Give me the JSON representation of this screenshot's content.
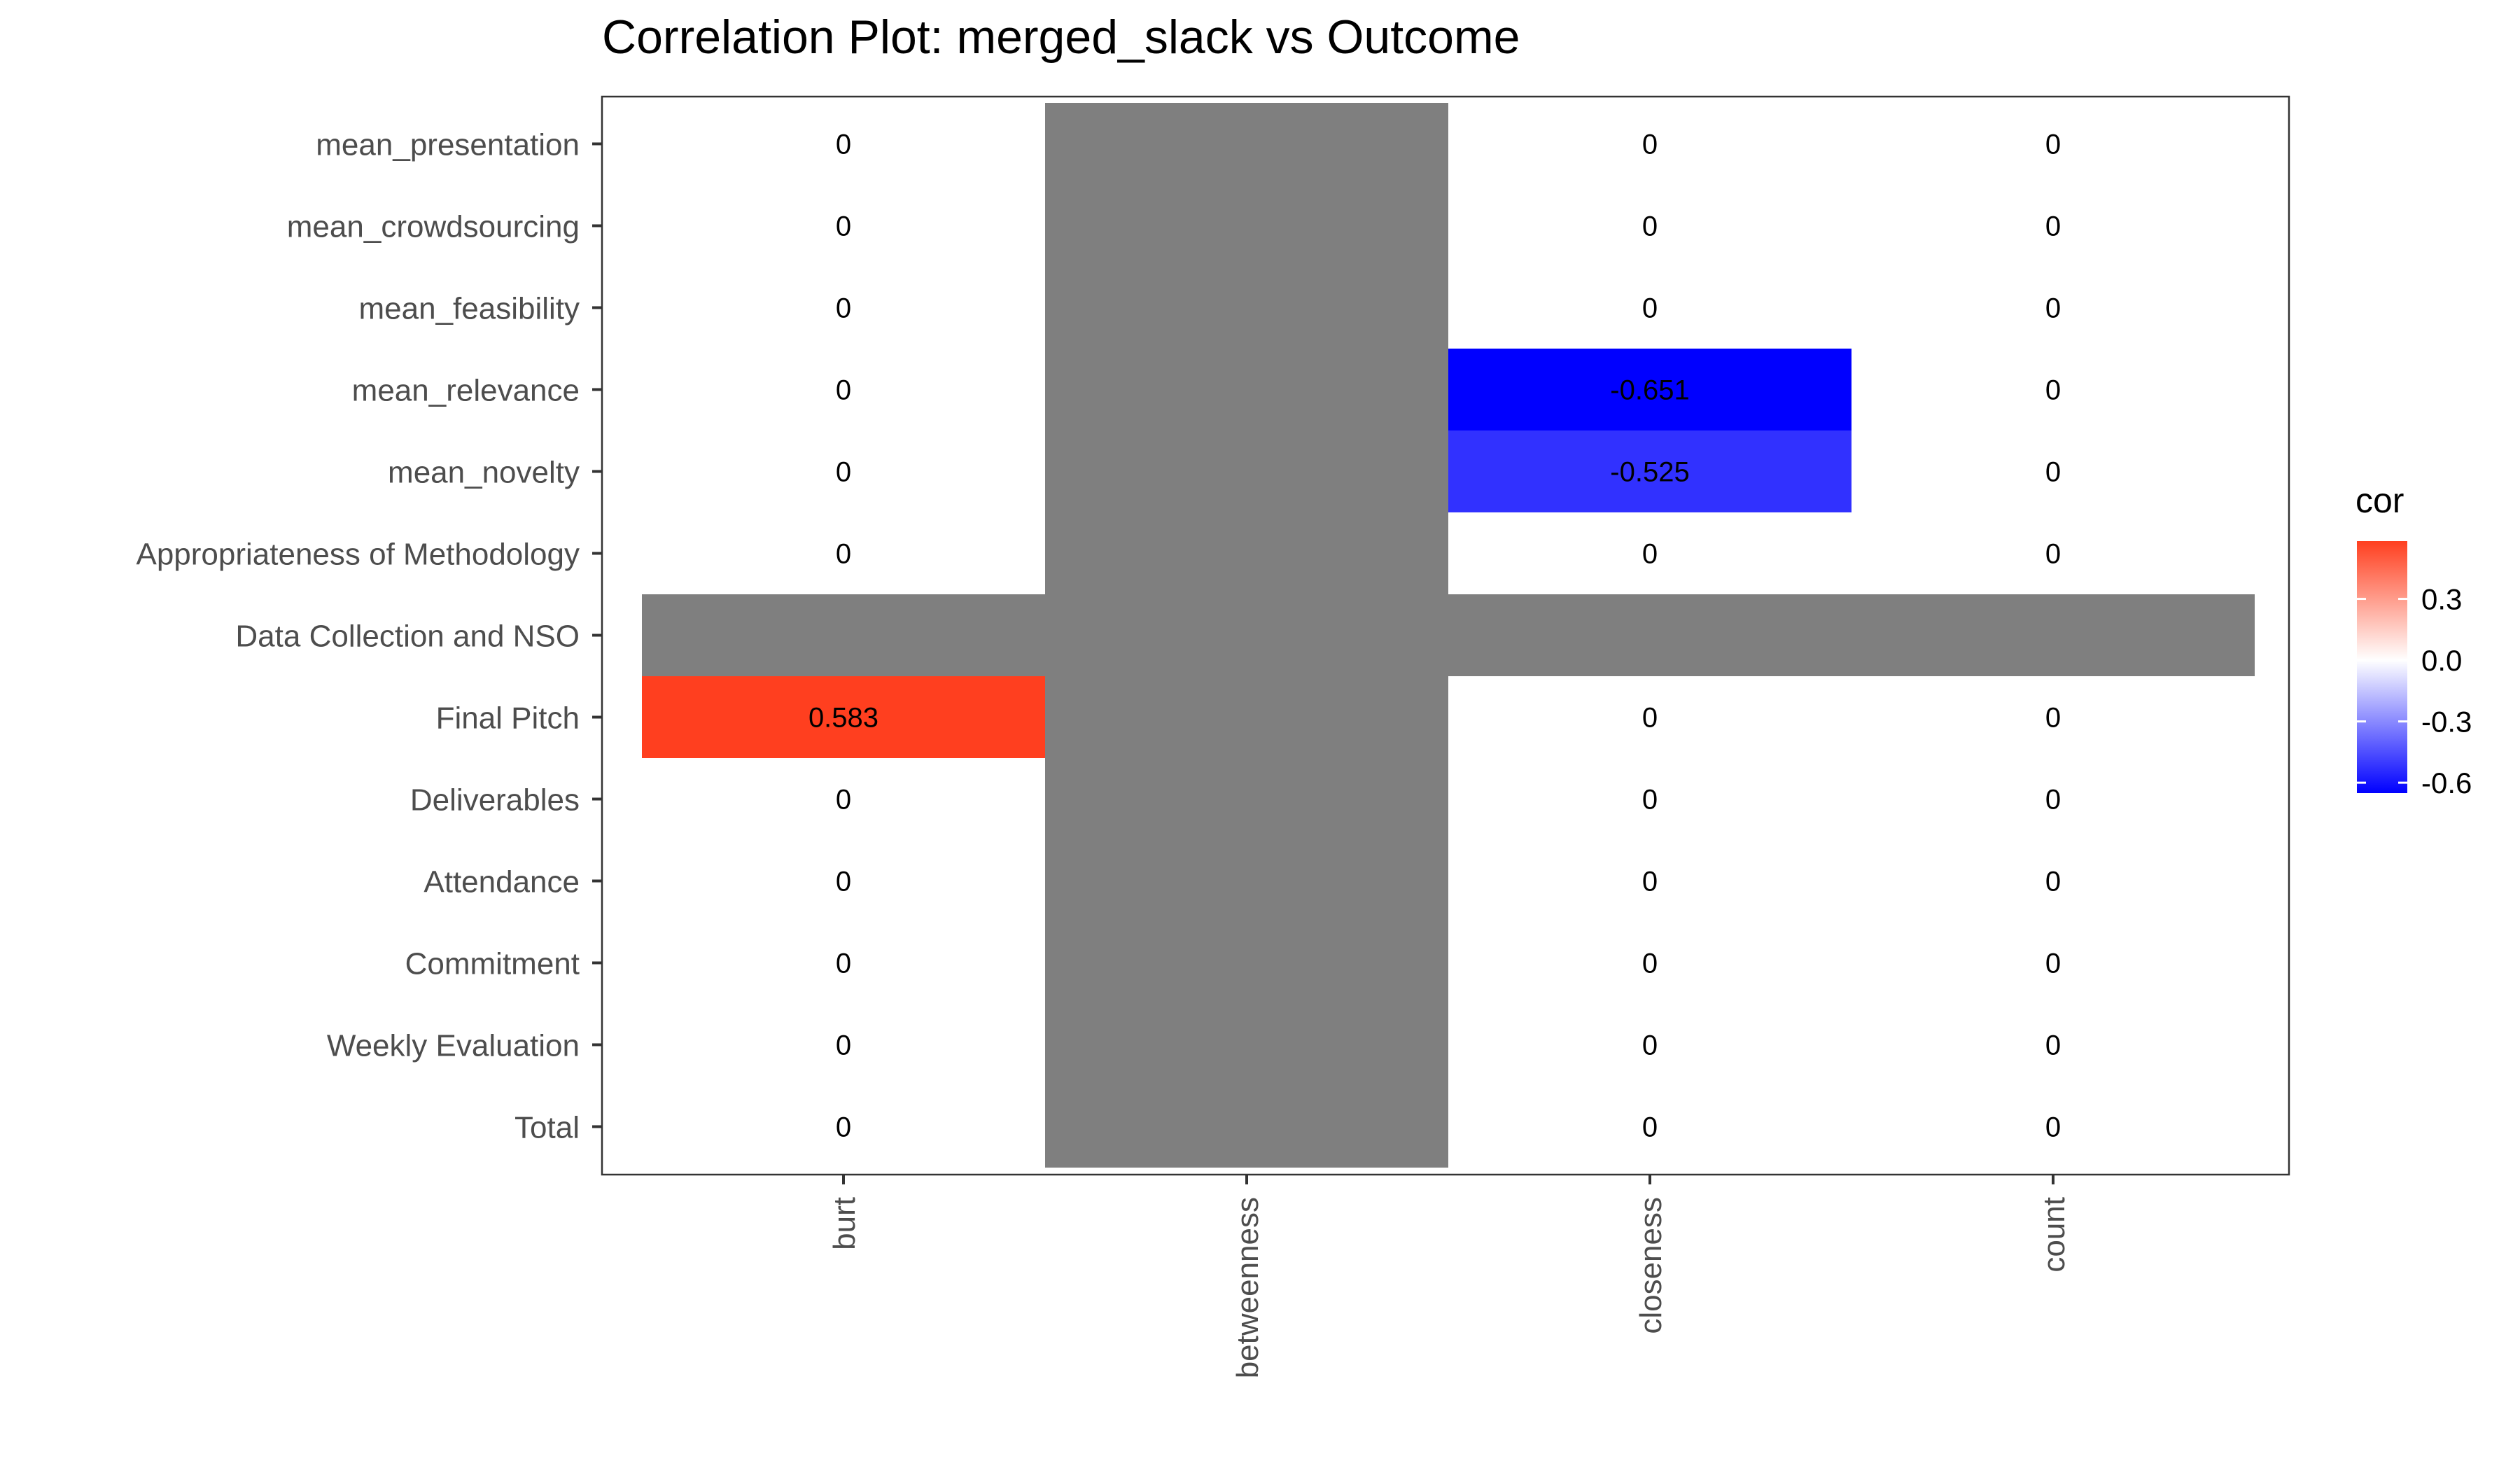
{
  "chart_data": {
    "type": "heatmap",
    "title": "Correlation Plot: merged_slack vs Outcome",
    "xlabel": "",
    "ylabel": "",
    "x_categories": [
      "burt",
      "betweenness",
      "closeness",
      "count"
    ],
    "y_categories": [
      "mean_presentation",
      "mean_crowdsourcing",
      "mean_feasibility",
      "mean_relevance",
      "mean_novelty",
      "Appropriateness of Methodology",
      "Data Collection and NSO",
      "Final Pitch",
      "Deliverables",
      "Attendance",
      "Commitment",
      "Weekly Evaluation",
      "Total"
    ],
    "values": [
      [
        0,
        null,
        0,
        0
      ],
      [
        0,
        null,
        0,
        0
      ],
      [
        0,
        null,
        0,
        0
      ],
      [
        0,
        null,
        -0.651,
        0
      ],
      [
        0,
        null,
        -0.525,
        0
      ],
      [
        0,
        null,
        0,
        0
      ],
      [
        null,
        null,
        null,
        null
      ],
      [
        0.583,
        null,
        0,
        0
      ],
      [
        0,
        null,
        0,
        0
      ],
      [
        0,
        null,
        0,
        0
      ],
      [
        0,
        null,
        0,
        0
      ],
      [
        0,
        null,
        0,
        0
      ],
      [
        0,
        null,
        0,
        0
      ]
    ],
    "labels": [
      [
        "0",
        "",
        "0",
        "0"
      ],
      [
        "0",
        "",
        "0",
        "0"
      ],
      [
        "0",
        "",
        "0",
        "0"
      ],
      [
        "0",
        "",
        "-0.651",
        "0"
      ],
      [
        "0",
        "",
        "-0.525",
        "0"
      ],
      [
        "0",
        "",
        "0",
        "0"
      ],
      [
        "",
        "",
        "",
        ""
      ],
      [
        "0.583",
        "",
        "0",
        "0"
      ],
      [
        "0",
        "",
        "0",
        "0"
      ],
      [
        "0",
        "",
        "0",
        "0"
      ],
      [
        "0",
        "",
        "0",
        "0"
      ],
      [
        "0",
        "",
        "0",
        "0"
      ],
      [
        "0",
        "",
        "0",
        "0"
      ]
    ],
    "na_color": "#7f7f7f",
    "colors": {
      "low": "#0000ff",
      "mid": "#ffffff",
      "high": "#ff3f1f"
    },
    "legend": {
      "title": "cor",
      "ticks": [
        0.3,
        0.0,
        -0.3,
        -0.6
      ],
      "tick_labels": [
        "0.3",
        "0.0",
        "-0.3",
        "-0.6"
      ],
      "range": [
        -0.651,
        0.583
      ],
      "position": "right"
    },
    "grid": false
  }
}
